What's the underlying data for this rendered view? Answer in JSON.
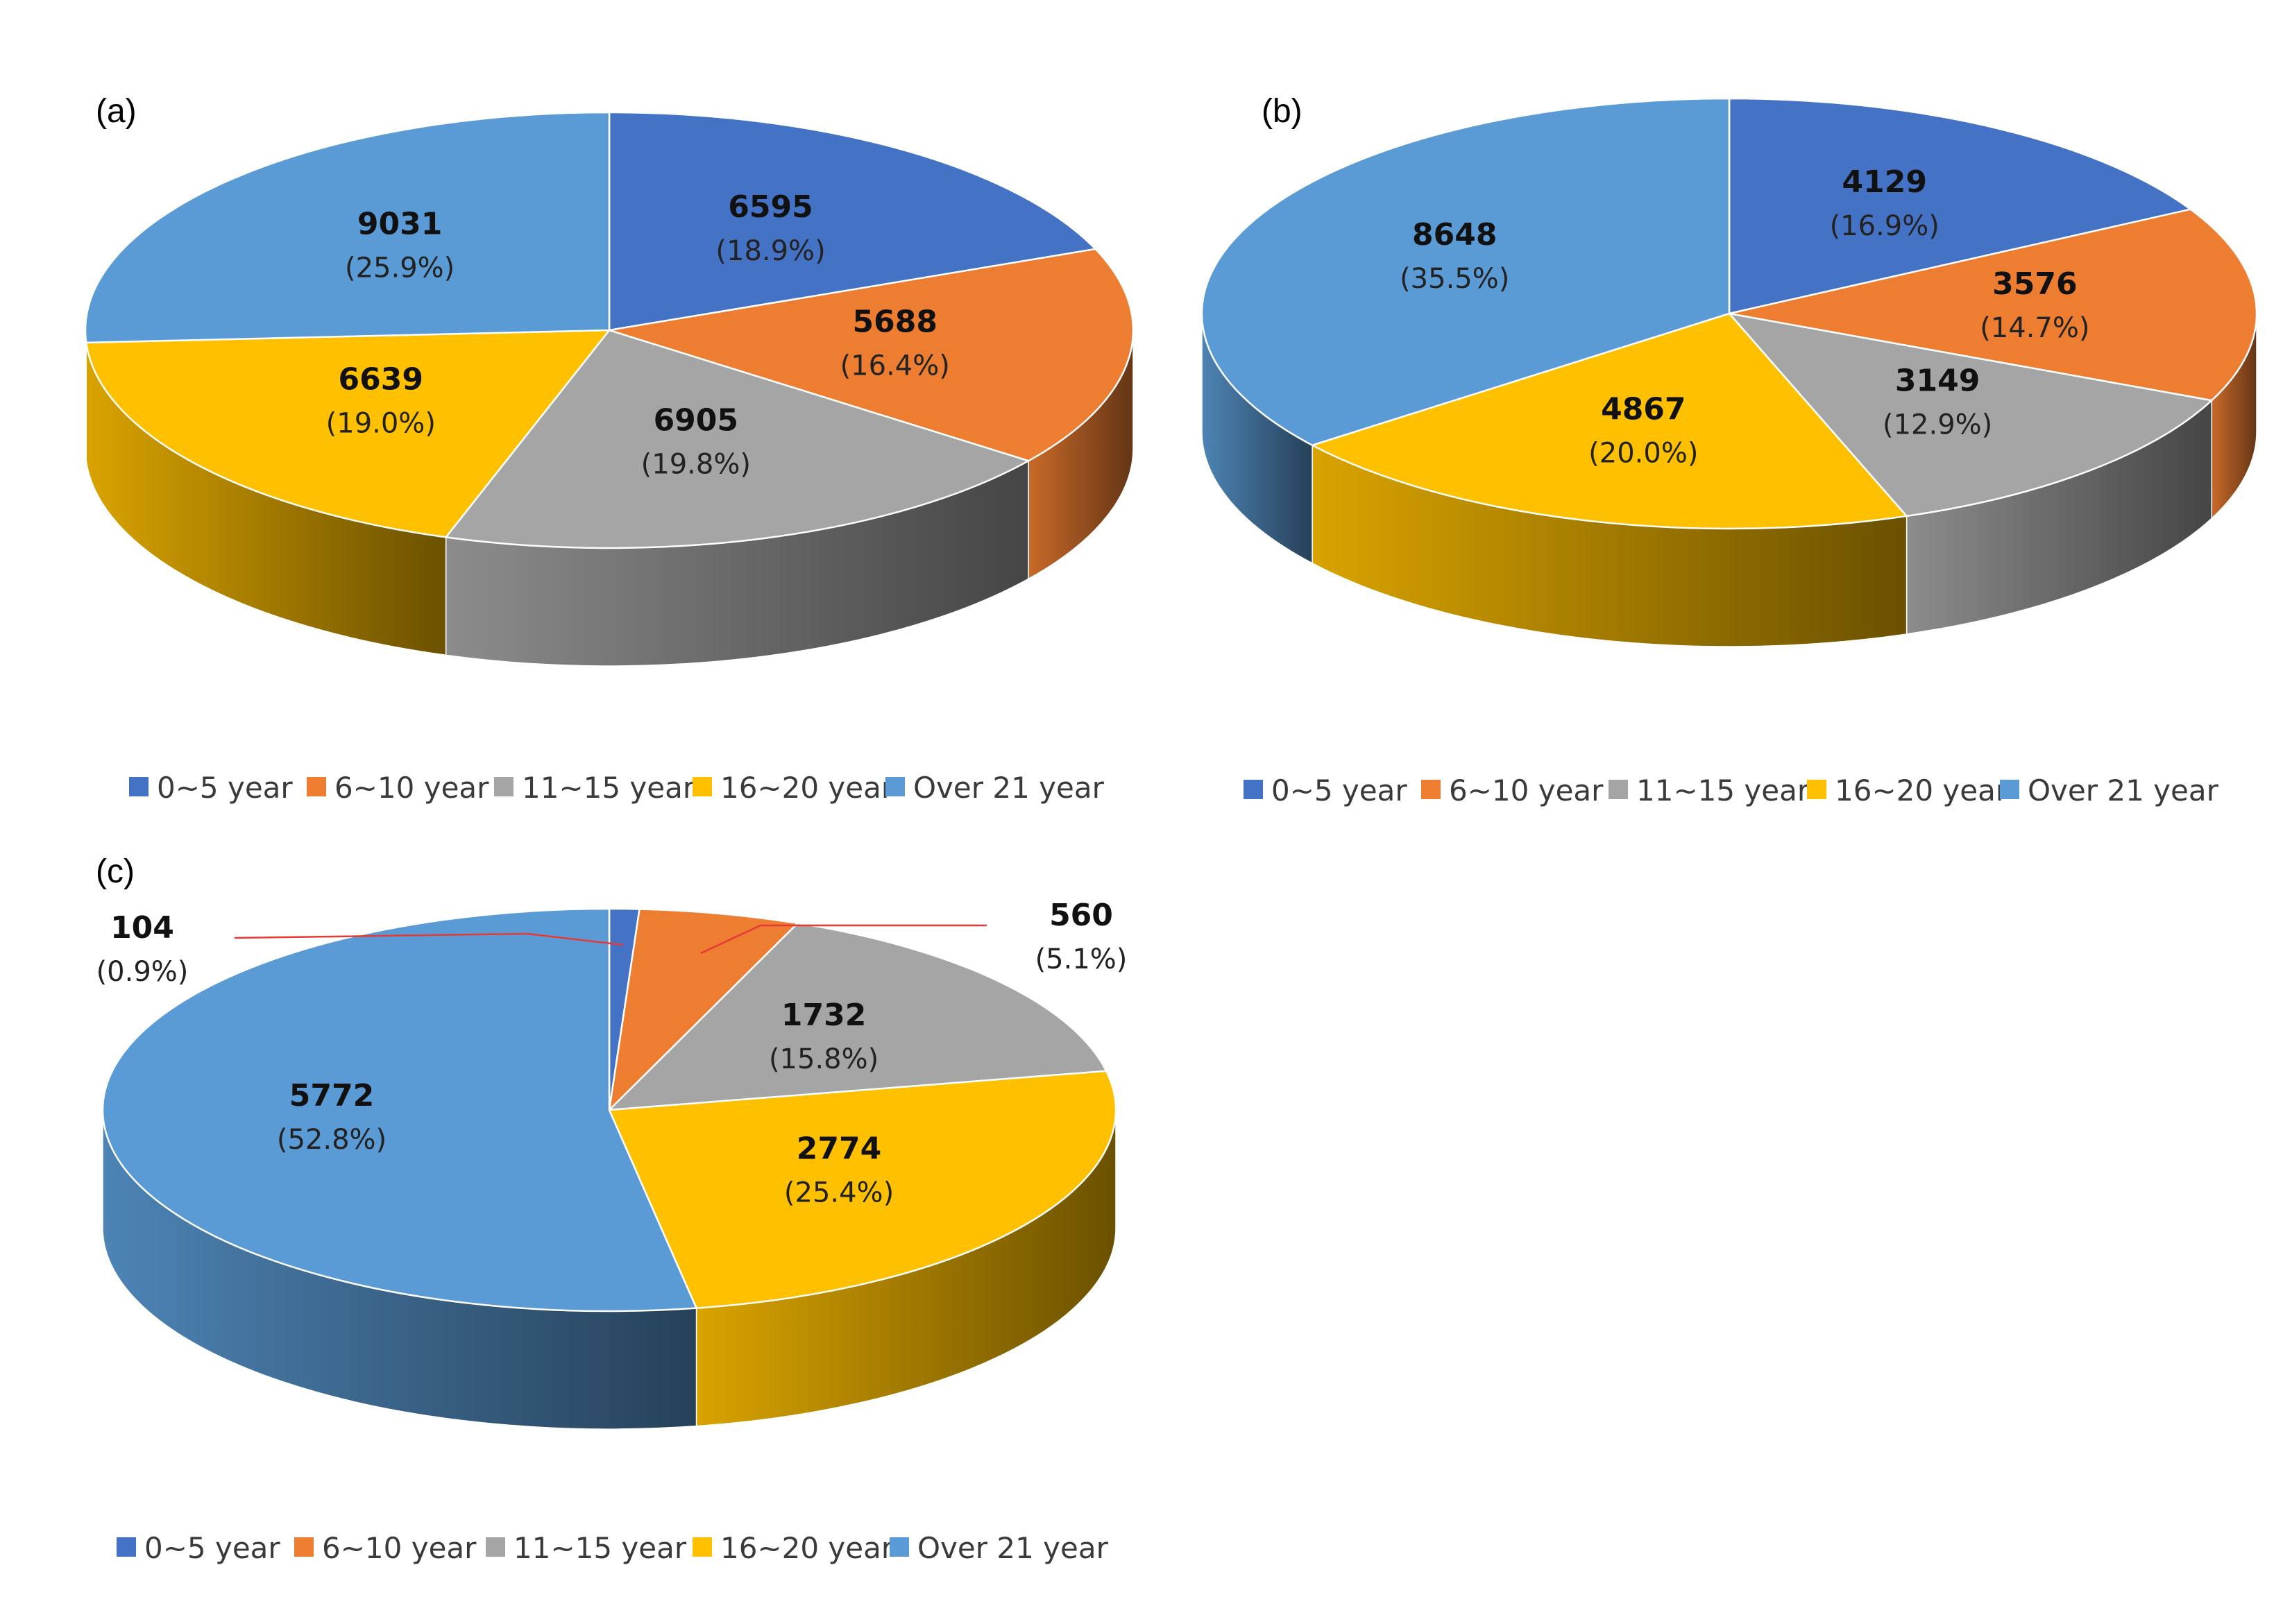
{
  "colors": {
    "0~5 year": "#4472C4",
    "6~10 year": "#ED7D31",
    "11~15 year": "#A5A5A5",
    "16~20 year": "#FFC000",
    "Over 21 year": "#5B9BD5",
    "leader": "#E53935"
  },
  "chart_data": [
    {
      "type": "pie",
      "style": "3d",
      "panel_label": "(a)",
      "categories": [
        "0~5 year",
        "6~10 year",
        "11~15 year",
        "16~20 year",
        "Over 21 year"
      ],
      "values": [
        6595,
        5688,
        6905,
        6639,
        9031
      ],
      "percent_labels": [
        "(18.9%)",
        "(16.4%)",
        "(19.8%)",
        "(19.0%)",
        "(25.9%)"
      ],
      "legend_position": "bottom"
    },
    {
      "type": "pie",
      "style": "3d",
      "panel_label": "(b)",
      "categories": [
        "0~5 year",
        "6~10 year",
        "11~15 year",
        "16~20 year",
        "Over 21 year"
      ],
      "values": [
        4129,
        3576,
        3149,
        4867,
        8648
      ],
      "percent_labels": [
        "(16.9%)",
        "(14.7%)",
        "(12.9%)",
        "(20.0%)",
        "(35.5%)"
      ],
      "legend_position": "bottom"
    },
    {
      "type": "pie",
      "style": "3d",
      "panel_label": "(c)",
      "categories": [
        "0~5 year",
        "6~10 year",
        "11~15 year",
        "16~20 year",
        "Over 21 year"
      ],
      "values": [
        104,
        560,
        1732,
        2774,
        5772
      ],
      "percent_labels": [
        "(0.9%)",
        "(5.1%)",
        "(15.8%)",
        "(25.4%)",
        "(52.8%)"
      ],
      "legend_position": "bottom",
      "external_labels": [
        "0~5 year",
        "6~10 year"
      ]
    }
  ]
}
